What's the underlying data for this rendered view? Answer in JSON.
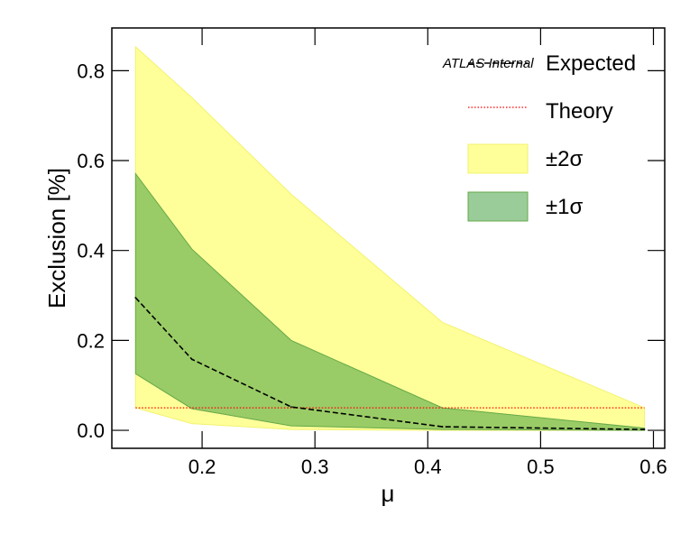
{
  "chart_data": {
    "type": "area",
    "xlabel": "μ",
    "ylabel": "Exclusion [%]",
    "annotation": "ATLAS Internal",
    "xlim": [
      0.12,
      0.61
    ],
    "ylim": [
      -0.04,
      0.895
    ],
    "xticks": [
      0.2,
      0.3,
      0.4,
      0.5,
      0.6
    ],
    "xtick_labels": [
      "0.2",
      "0.3",
      "0.4",
      "0.5",
      "0.6"
    ],
    "yticks": [
      0.0,
      0.2,
      0.4,
      0.6,
      0.8
    ],
    "ytick_labels": [
      "0.0",
      "0.2",
      "0.4",
      "0.6",
      "0.8"
    ],
    "x": [
      0.141,
      0.191,
      0.279,
      0.413,
      0.592
    ],
    "expected": [
      0.295,
      0.158,
      0.052,
      0.008,
      0.002
    ],
    "band_1sigma": {
      "low": [
        0.126,
        0.048,
        0.01,
        0.002,
        0.0
      ],
      "high": [
        0.571,
        0.403,
        0.2,
        0.05,
        0.005
      ]
    },
    "band_2sigma": {
      "low": [
        0.05,
        0.015,
        0.002,
        0.0,
        0.0
      ],
      "high": [
        0.853,
        0.74,
        0.525,
        0.24,
        0.05
      ]
    },
    "theory": 0.05,
    "grid": false,
    "legend_placement": "top-right",
    "legend": [
      {
        "key": "expected",
        "label": "Expected"
      },
      {
        "key": "theory",
        "label": "Theory"
      },
      {
        "key": "band_2sigma",
        "label": "±2σ"
      },
      {
        "key": "band_1sigma",
        "label": "±1σ"
      }
    ],
    "colors": {
      "band_2sigma_fill": "#ffff99",
      "band_2sigma_edge": "#f2f270",
      "band_1sigma_fill": "#99cc66",
      "band_1sigma_edge": "#66a84a",
      "legend_1sigma_fill": "#99cc99",
      "expected_line": "#000000",
      "theory_line": "#ff0000"
    }
  }
}
